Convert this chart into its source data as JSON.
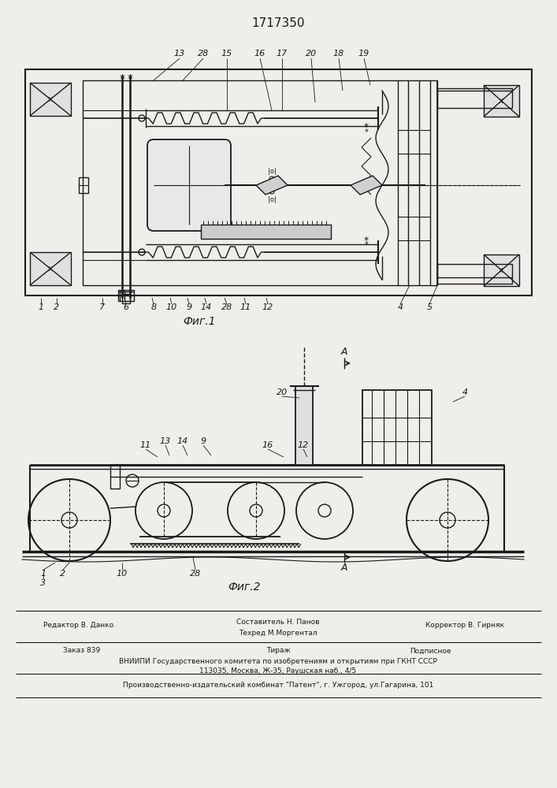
{
  "title": "1717350",
  "fig1_caption": "Фиг.1",
  "fig2_caption": "Фиг.2",
  "bg_color": "#f0eeea",
  "lc": "#1a1a1a",
  "footer": {
    "editor": "Редактор В. Данко",
    "sostavitel": "Составитель Н. Панов",
    "tekhred": "Техред М.Моргентал",
    "korrektor": "Корректор В. Гирняк",
    "zakaz": "Заказ 839",
    "tirazh": "Тираж",
    "podpisnoe": "Подписное",
    "vniipи": "ВНИИПИ Государственного комитета по изобретениям и открытиям при ГКНТ СССР",
    "address": "113035, Москва, Ж-35, Раушская наб., 4/5",
    "patent": "Производственно-издательский комбинат \"Патент\", г. Ужгород, ул.Гагарина, 101"
  }
}
